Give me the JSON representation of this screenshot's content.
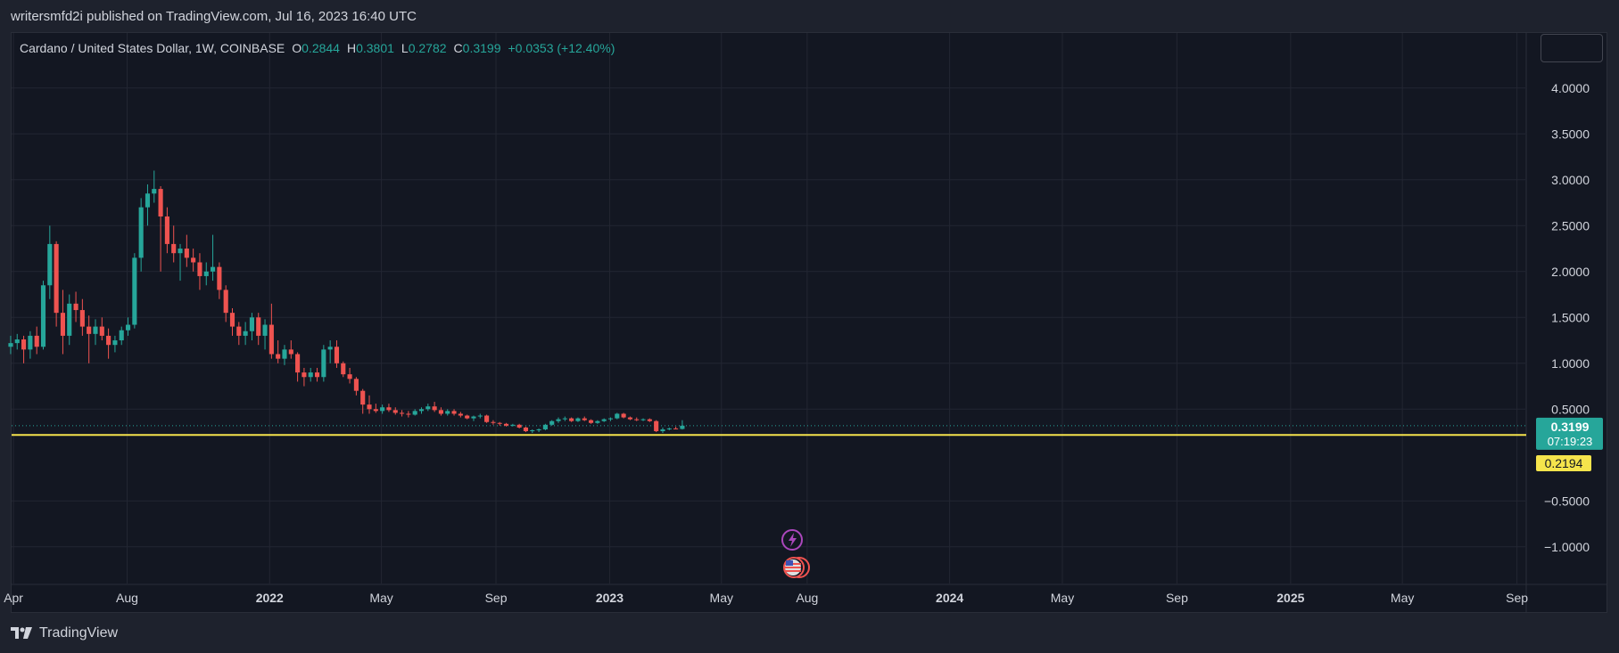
{
  "header": {
    "published_text": "writersmfd2i published on TradingView.com, Jul 16, 2023 16:40 UTC"
  },
  "legend": {
    "symbol": "Cardano / United States Dollar, 1W, COINBASE",
    "open_key": "O",
    "open": "0.2844",
    "high_key": "H",
    "high": "0.3801",
    "low_key": "L",
    "low": "0.2782",
    "close_key": "C",
    "close": "0.3199",
    "change": "+0.0353 (+12.40%)"
  },
  "footer": {
    "brand": "TradingView"
  },
  "labels": {
    "last_price": "0.3199",
    "countdown": "07:19:23",
    "hline_price": "0.2194"
  },
  "colors": {
    "up": "#26a69a",
    "down": "#ef5350",
    "hline": "#f5e44c",
    "grid": "#232632",
    "text": "#d1d4dc"
  },
  "chart_data": {
    "type": "candlestick",
    "title": "Cardano / United States Dollar, 1W, COINBASE",
    "xlabel": "",
    "ylabel": "",
    "ylim": [
      -1.4,
      4.6
    ],
    "yticks": [
      -1.0,
      -0.5,
      0.5,
      1.0,
      1.5,
      2.0,
      2.5,
      3.0,
      3.5,
      4.0
    ],
    "ytick_labels": [
      "−1.0000",
      "−0.5000",
      "0.5000",
      "1.0000",
      "1.5000",
      "2.0000",
      "2.5000",
      "3.0000",
      "3.5000",
      "4.0000"
    ],
    "xtick_labels": [
      {
        "label": "Apr",
        "date": "2021-04-01",
        "bold": false
      },
      {
        "label": "Aug",
        "date": "2021-08-01",
        "bold": false
      },
      {
        "label": "2022",
        "date": "2022-01-01",
        "bold": true
      },
      {
        "label": "May",
        "date": "2022-05-01",
        "bold": false
      },
      {
        "label": "Sep",
        "date": "2022-09-01",
        "bold": false
      },
      {
        "label": "2023",
        "date": "2023-01-01",
        "bold": true
      },
      {
        "label": "May",
        "date": "2023-05-01",
        "bold": false
      },
      {
        "label": "Aug",
        "date": "2023-08-01",
        "bold": false
      },
      {
        "label": "2024",
        "date": "2024-01-01",
        "bold": true
      },
      {
        "label": "May",
        "date": "2024-05-01",
        "bold": false
      },
      {
        "label": "Sep",
        "date": "2024-09-01",
        "bold": false
      },
      {
        "label": "2025",
        "date": "2025-01-01",
        "bold": true
      },
      {
        "label": "May",
        "date": "2025-05-01",
        "bold": false
      },
      {
        "label": "Sep",
        "date": "2025-09-01",
        "bold": false
      }
    ],
    "xrange": [
      "2021-03-30",
      "2025-09-10"
    ],
    "horizontal_line": 0.2194,
    "last_close": 0.3199,
    "grid": true,
    "candle_interval": "1W",
    "candles_start": "2021-03-29",
    "candles": [
      [
        1.18,
        1.3,
        1.1,
        1.22
      ],
      [
        1.22,
        1.32,
        1.15,
        1.26
      ],
      [
        1.26,
        1.3,
        1.0,
        1.15
      ],
      [
        1.15,
        1.35,
        1.05,
        1.3
      ],
      [
        1.3,
        1.4,
        1.1,
        1.18
      ],
      [
        1.18,
        1.9,
        1.15,
        1.85
      ],
      [
        1.85,
        2.5,
        1.7,
        2.3
      ],
      [
        2.3,
        2.33,
        1.4,
        1.55
      ],
      [
        1.55,
        1.8,
        1.1,
        1.3
      ],
      [
        1.3,
        1.75,
        1.2,
        1.65
      ],
      [
        1.65,
        1.78,
        1.45,
        1.58
      ],
      [
        1.58,
        1.7,
        1.3,
        1.4
      ],
      [
        1.4,
        1.52,
        1.0,
        1.32
      ],
      [
        1.32,
        1.48,
        1.2,
        1.4
      ],
      [
        1.4,
        1.5,
        1.25,
        1.3
      ],
      [
        1.3,
        1.38,
        1.05,
        1.2
      ],
      [
        1.2,
        1.3,
        1.12,
        1.25
      ],
      [
        1.25,
        1.4,
        1.2,
        1.36
      ],
      [
        1.36,
        1.5,
        1.3,
        1.42
      ],
      [
        1.42,
        2.2,
        1.38,
        2.15
      ],
      [
        2.15,
        2.8,
        2.0,
        2.7
      ],
      [
        2.7,
        2.95,
        2.5,
        2.85
      ],
      [
        2.85,
        3.1,
        2.75,
        2.9
      ],
      [
        2.9,
        2.93,
        2.0,
        2.6
      ],
      [
        2.6,
        2.7,
        2.2,
        2.3
      ],
      [
        2.3,
        2.5,
        2.1,
        2.2
      ],
      [
        2.2,
        2.3,
        1.9,
        2.25
      ],
      [
        2.25,
        2.4,
        2.05,
        2.15
      ],
      [
        2.15,
        2.25,
        2.0,
        2.1
      ],
      [
        2.1,
        2.2,
        1.8,
        1.95
      ],
      [
        1.95,
        2.1,
        1.85,
        2.0
      ],
      [
        2.0,
        2.4,
        1.9,
        2.05
      ],
      [
        2.05,
        2.1,
        1.7,
        1.8
      ],
      [
        1.8,
        1.85,
        1.45,
        1.55
      ],
      [
        1.55,
        1.6,
        1.3,
        1.4
      ],
      [
        1.4,
        1.45,
        1.2,
        1.3
      ],
      [
        1.3,
        1.45,
        1.2,
        1.35
      ],
      [
        1.35,
        1.55,
        1.25,
        1.5
      ],
      [
        1.5,
        1.55,
        1.2,
        1.3
      ],
      [
        1.3,
        1.48,
        1.15,
        1.42
      ],
      [
        1.42,
        1.65,
        1.05,
        1.1
      ],
      [
        1.1,
        1.25,
        1.0,
        1.05
      ],
      [
        1.05,
        1.2,
        0.98,
        1.15
      ],
      [
        1.15,
        1.25,
        1.05,
        1.1
      ],
      [
        1.1,
        1.12,
        0.8,
        0.9
      ],
      [
        0.9,
        0.95,
        0.75,
        0.85
      ],
      [
        0.85,
        0.95,
        0.8,
        0.9
      ],
      [
        0.9,
        0.95,
        0.8,
        0.85
      ],
      [
        0.85,
        1.2,
        0.8,
        1.15
      ],
      [
        1.15,
        1.25,
        1.0,
        1.18
      ],
      [
        1.18,
        1.25,
        0.95,
        1.0
      ],
      [
        1.0,
        1.02,
        0.85,
        0.88
      ],
      [
        0.88,
        0.95,
        0.78,
        0.83
      ],
      [
        0.83,
        0.85,
        0.65,
        0.7
      ],
      [
        0.7,
        0.72,
        0.45,
        0.55
      ],
      [
        0.55,
        0.65,
        0.45,
        0.5
      ],
      [
        0.5,
        0.56,
        0.46,
        0.48
      ],
      [
        0.48,
        0.55,
        0.45,
        0.52
      ],
      [
        0.52,
        0.56,
        0.47,
        0.49
      ],
      [
        0.49,
        0.52,
        0.44,
        0.46
      ],
      [
        0.46,
        0.49,
        0.42,
        0.45
      ],
      [
        0.45,
        0.48,
        0.41,
        0.44
      ],
      [
        0.44,
        0.5,
        0.43,
        0.48
      ],
      [
        0.48,
        0.52,
        0.45,
        0.5
      ],
      [
        0.5,
        0.56,
        0.48,
        0.53
      ],
      [
        0.53,
        0.58,
        0.47,
        0.49
      ],
      [
        0.49,
        0.52,
        0.43,
        0.45
      ],
      [
        0.45,
        0.5,
        0.43,
        0.48
      ],
      [
        0.48,
        0.5,
        0.43,
        0.45
      ],
      [
        0.45,
        0.47,
        0.41,
        0.43
      ],
      [
        0.43,
        0.44,
        0.39,
        0.4
      ],
      [
        0.4,
        0.43,
        0.37,
        0.42
      ],
      [
        0.42,
        0.45,
        0.4,
        0.43
      ],
      [
        0.43,
        0.44,
        0.35,
        0.36
      ],
      [
        0.36,
        0.38,
        0.33,
        0.35
      ],
      [
        0.35,
        0.36,
        0.32,
        0.34
      ],
      [
        0.34,
        0.35,
        0.31,
        0.32
      ],
      [
        0.32,
        0.34,
        0.31,
        0.33
      ],
      [
        0.33,
        0.34,
        0.29,
        0.3
      ],
      [
        0.3,
        0.31,
        0.25,
        0.26
      ],
      [
        0.26,
        0.28,
        0.24,
        0.27
      ],
      [
        0.27,
        0.29,
        0.25,
        0.28
      ],
      [
        0.28,
        0.34,
        0.27,
        0.33
      ],
      [
        0.33,
        0.38,
        0.32,
        0.37
      ],
      [
        0.37,
        0.41,
        0.35,
        0.39
      ],
      [
        0.39,
        0.42,
        0.37,
        0.4
      ],
      [
        0.4,
        0.41,
        0.36,
        0.37
      ],
      [
        0.37,
        0.41,
        0.36,
        0.4
      ],
      [
        0.4,
        0.42,
        0.37,
        0.38
      ],
      [
        0.38,
        0.39,
        0.34,
        0.35
      ],
      [
        0.35,
        0.38,
        0.34,
        0.37
      ],
      [
        0.37,
        0.4,
        0.36,
        0.39
      ],
      [
        0.39,
        0.41,
        0.37,
        0.4
      ],
      [
        0.4,
        0.46,
        0.39,
        0.45
      ],
      [
        0.45,
        0.46,
        0.4,
        0.41
      ],
      [
        0.41,
        0.42,
        0.38,
        0.39
      ],
      [
        0.39,
        0.41,
        0.37,
        0.38
      ],
      [
        0.38,
        0.4,
        0.37,
        0.39
      ],
      [
        0.39,
        0.4,
        0.36,
        0.37
      ],
      [
        0.37,
        0.38,
        0.25,
        0.26
      ],
      [
        0.26,
        0.3,
        0.24,
        0.28
      ],
      [
        0.28,
        0.3,
        0.27,
        0.29
      ],
      [
        0.29,
        0.31,
        0.28,
        0.285
      ],
      [
        0.2844,
        0.3801,
        0.2782,
        0.3199
      ]
    ]
  }
}
